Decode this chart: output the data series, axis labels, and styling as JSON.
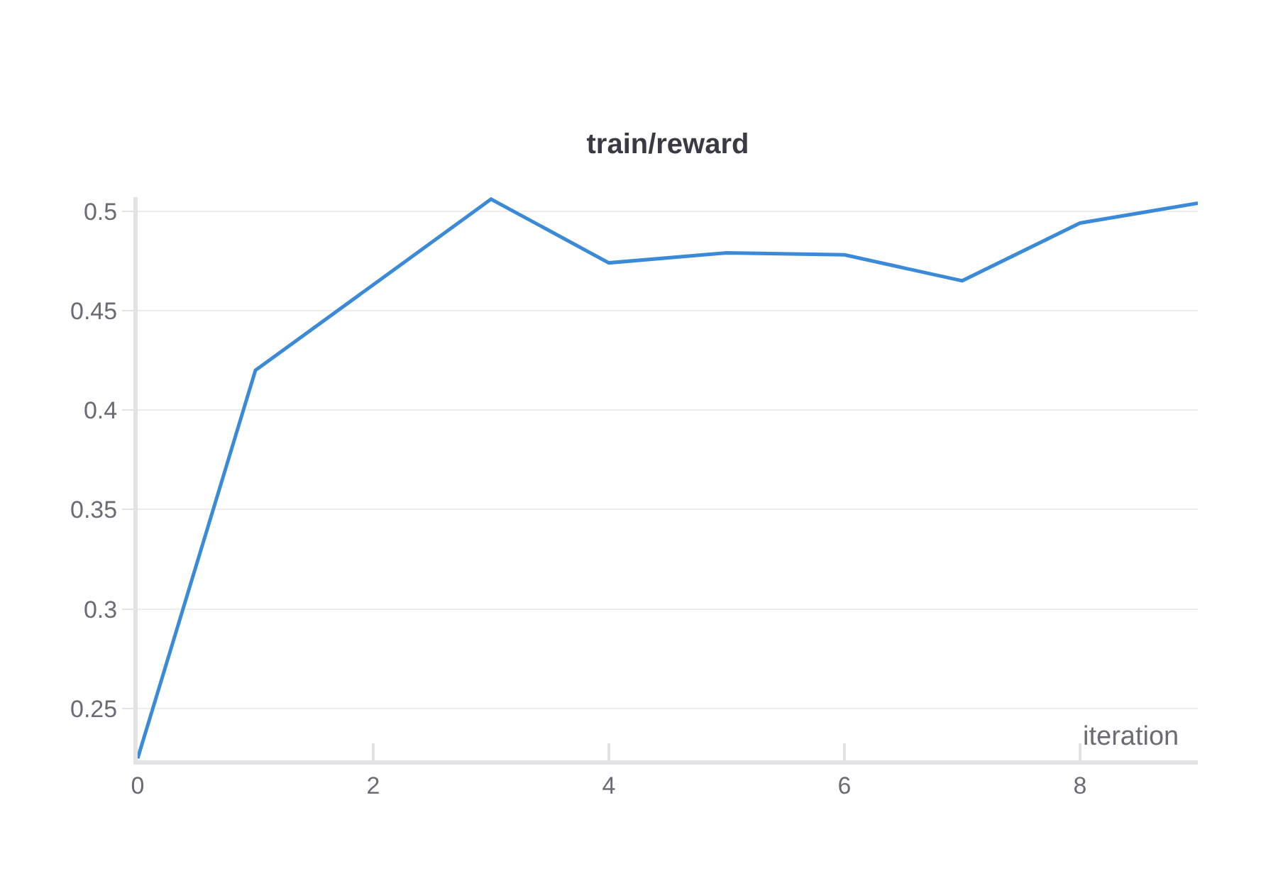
{
  "chart_data": {
    "type": "line",
    "title": "train/reward",
    "xlabel": "iteration",
    "x": [
      0,
      1,
      2,
      3,
      4,
      5,
      6,
      7,
      8,
      9
    ],
    "series": [
      {
        "color": "#3b8ad8",
        "values": [
          0.225,
          0.42,
          0.463,
          0.506,
          0.474,
          0.479,
          0.478,
          0.465,
          0.494,
          0.504
        ]
      }
    ],
    "xlim": [
      0,
      9
    ],
    "xticks": [
      0,
      2,
      4,
      6,
      8
    ],
    "ylim": [
      0.224,
      0.507
    ],
    "yticks": [
      0.25,
      0.3,
      0.35,
      0.4,
      0.45,
      0.5
    ],
    "grid": "y",
    "line_style": "solid"
  }
}
